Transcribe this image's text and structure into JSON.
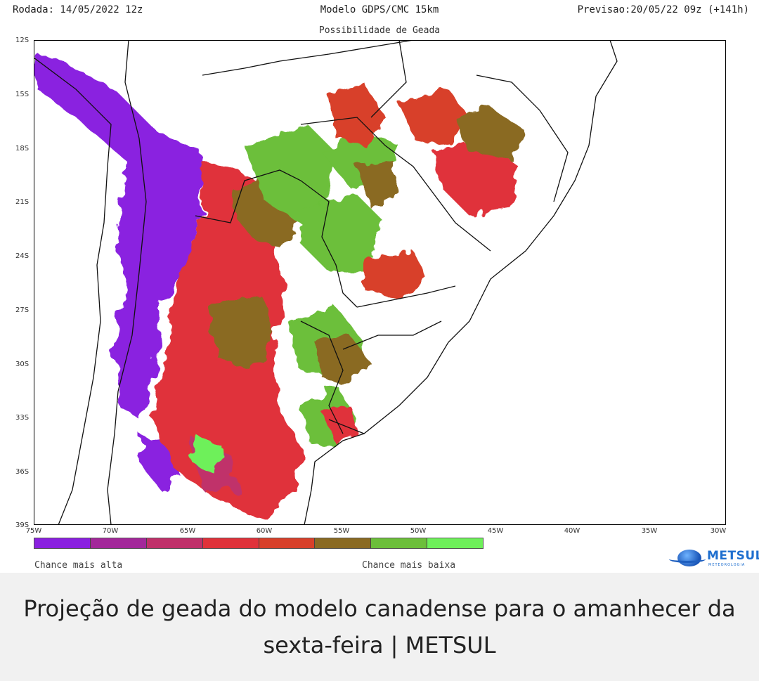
{
  "header": {
    "left": "Rodada: 14/05/2022 12z",
    "center": "Modelo GDPS/CMC 15km",
    "right": "Previsao:20/05/22 09z (+141h)"
  },
  "subtitle": "Possibilidade de Geada",
  "axes": {
    "lat_labels": [
      "12S",
      "15S",
      "18S",
      "21S",
      "24S",
      "27S",
      "30S",
      "33S",
      "36S",
      "39S"
    ],
    "lon_labels": [
      "75W",
      "70W",
      "65W",
      "60W",
      "55W",
      "50W",
      "45W",
      "40W",
      "35W",
      "30W"
    ]
  },
  "legend": {
    "colors": [
      "#8a20e0",
      "#a3279a",
      "#c0306a",
      "#e0323a",
      "#d8402a",
      "#8a6a22",
      "#6cbf3a",
      "#6ef05a"
    ],
    "high_label": "Chance mais alta",
    "low_label": "Chance mais baixa"
  },
  "logo": {
    "name": "METSUL",
    "sub": "METEOROLOGIA"
  },
  "caption": "Projeção de geada do modelo canadense para o amanhecer da sexta-feira | METSUL"
}
